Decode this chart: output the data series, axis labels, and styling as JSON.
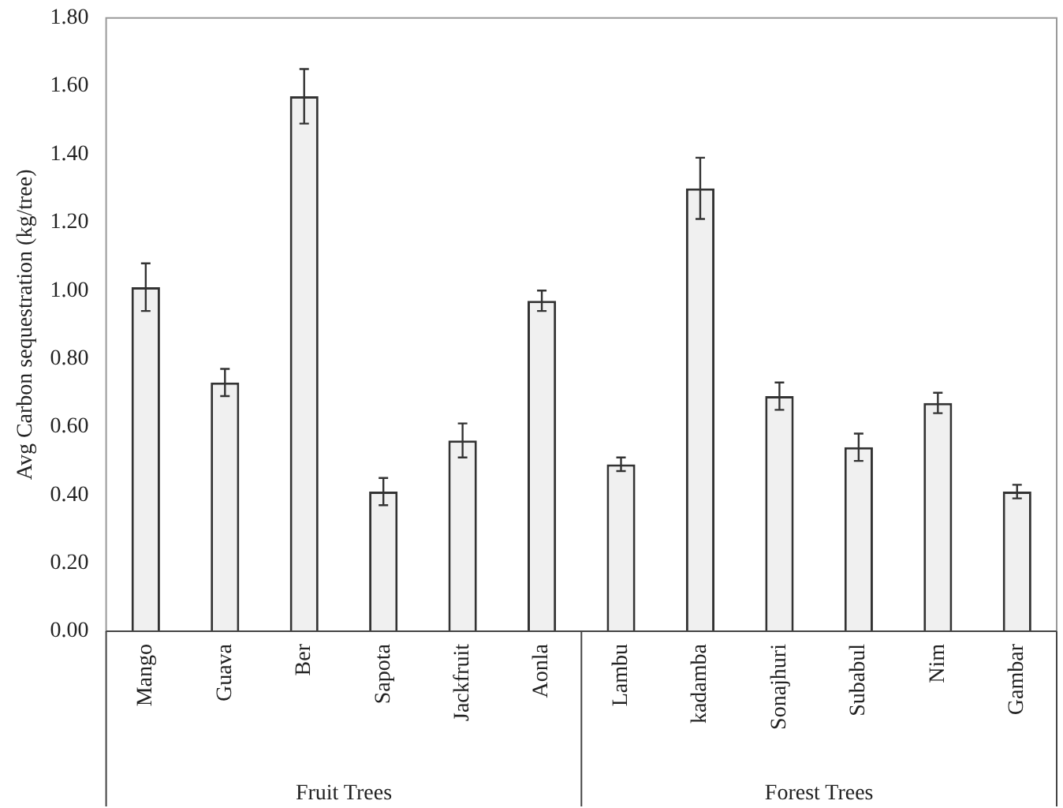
{
  "chart_data": {
    "type": "bar",
    "ylabel": "Avg Carbon sequestration (kg/tree)",
    "categories": [
      "Mango",
      "Guava",
      "Ber",
      "Sapota",
      "Jackfruit",
      "Aonla",
      "Lambu",
      "kadamba",
      "Sonajhuri",
      "Subabul",
      "Nim",
      "Gambar"
    ],
    "values": [
      1.01,
      0.73,
      1.57,
      0.41,
      0.56,
      0.97,
      0.49,
      1.3,
      0.69,
      0.54,
      0.67,
      0.41
    ],
    "errors": [
      0.07,
      0.04,
      0.08,
      0.04,
      0.05,
      0.03,
      0.02,
      0.09,
      0.04,
      0.04,
      0.03,
      0.02
    ],
    "color": "#f0f0f0",
    "ylim": [
      0,
      1.8
    ],
    "yticks": [
      {
        "value": 0,
        "label": "0.00"
      },
      {
        "value": 0.2,
        "label": "0.20"
      },
      {
        "value": 0.4,
        "label": "0.40"
      },
      {
        "value": 0.6,
        "label": "0.60"
      },
      {
        "value": 0.8,
        "label": "0.80"
      },
      {
        "value": 1,
        "label": "1.00"
      },
      {
        "value": 1.2,
        "label": "1.20"
      },
      {
        "value": 1.4,
        "label": "1.40"
      },
      {
        "value": 1.6,
        "label": "1.60"
      },
      {
        "value": 1.8,
        "label": "1.80"
      }
    ],
    "grid": false,
    "annotations": [
      "Fruit Trees",
      "Forest Trees"
    ]
  }
}
